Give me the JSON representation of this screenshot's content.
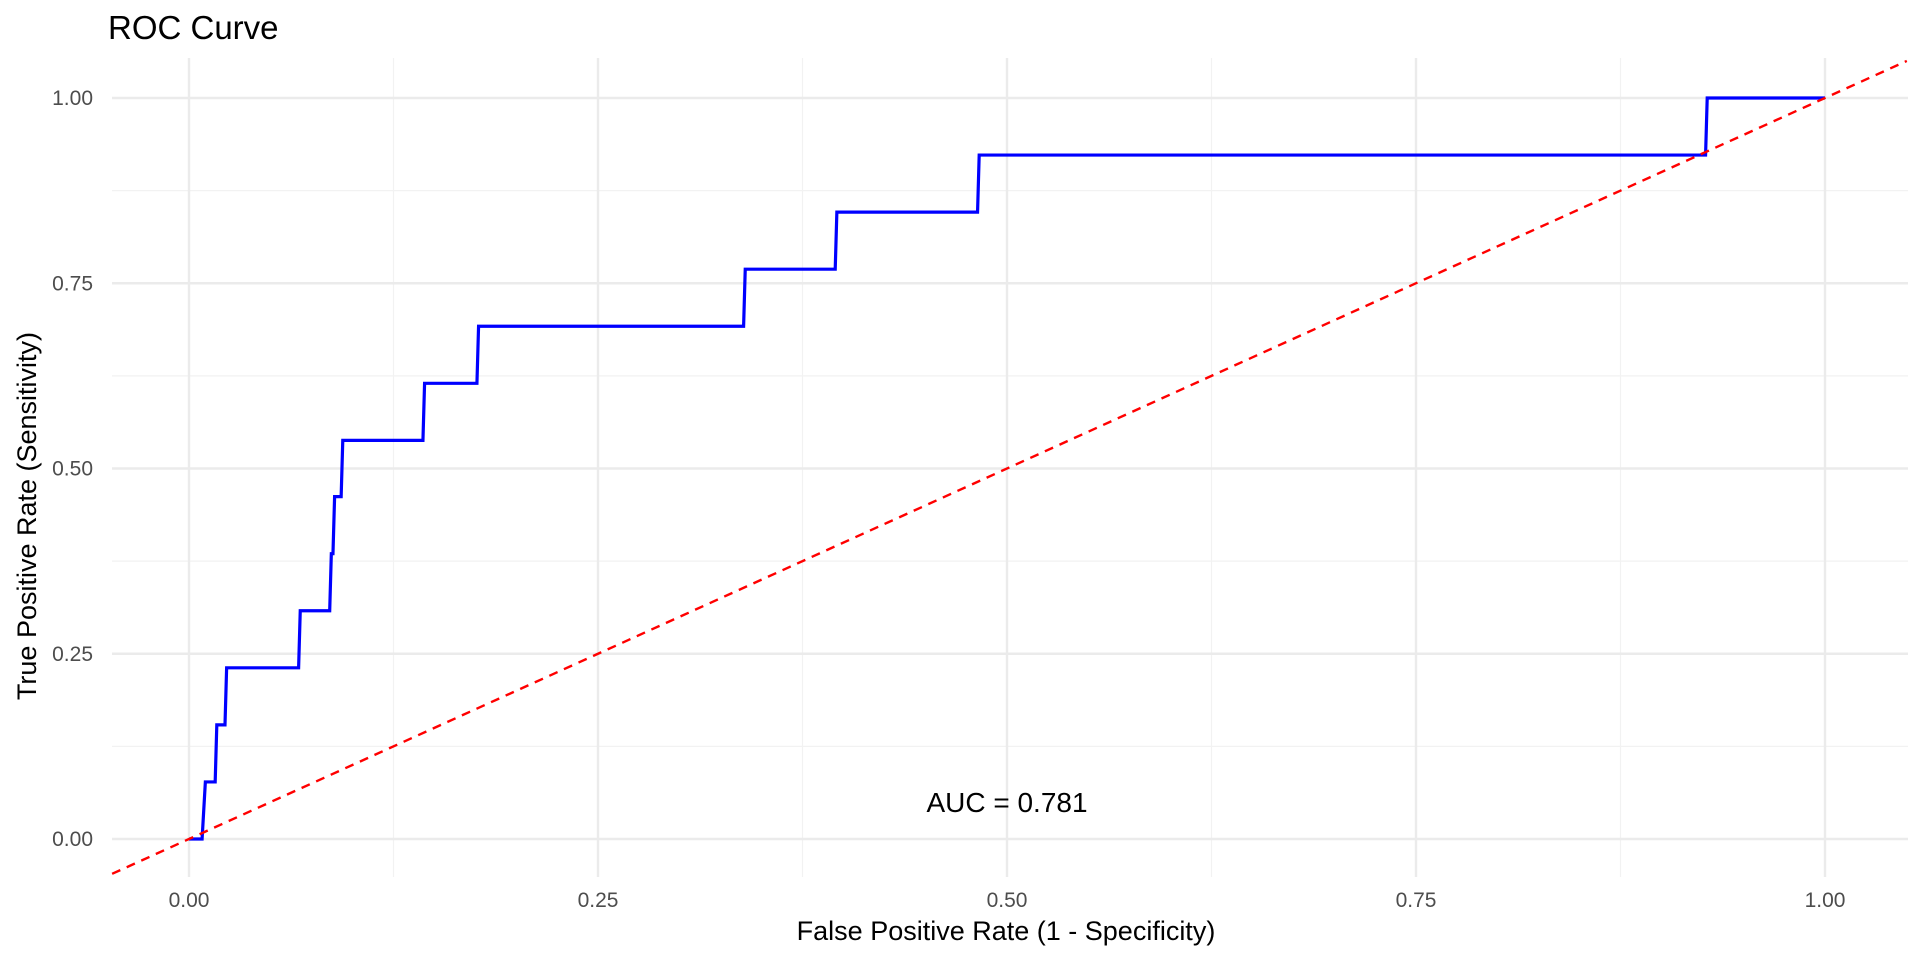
{
  "chart_data": {
    "type": "line",
    "title": "ROC Curve",
    "xlabel": "False Positive Rate (1 - Specificity)",
    "ylabel": "True Positive Rate (Sensitivity)",
    "xlim": [
      -0.047,
      1.05
    ],
    "ylim": [
      -0.05,
      1.05
    ],
    "x_ticks": [
      0,
      0.25,
      0.5,
      0.75,
      1
    ],
    "x_tick_labels": [
      "0.00",
      "0.25",
      "0.50",
      "0.75",
      "1.00"
    ],
    "y_ticks": [
      0,
      0.25,
      0.5,
      0.75,
      1
    ],
    "y_tick_labels": [
      "0.00",
      "0.25",
      "0.50",
      "0.75",
      "1.00"
    ],
    "grid": true,
    "series": [
      {
        "color": "#0000ff",
        "style": "solid",
        "x": [
          0,
          0.008,
          0.01,
          0.01,
          0.016,
          0.017,
          0.022,
          0.023,
          0.067,
          0.068,
          0.086,
          0.087,
          0.088,
          0.089,
          0.093,
          0.094,
          0.143,
          0.144,
          0.176,
          0.177,
          0.339,
          0.34,
          0.395,
          0.396,
          0.482,
          0.483,
          0.927,
          0.928,
          1.0
        ],
        "y": [
          0,
          0,
          0.077,
          0.077,
          0.077,
          0.154,
          0.154,
          0.231,
          0.231,
          0.308,
          0.308,
          0.385,
          0.385,
          0.462,
          0.462,
          0.538,
          0.538,
          0.615,
          0.615,
          0.692,
          0.692,
          0.769,
          0.769,
          0.846,
          0.846,
          0.923,
          0.923,
          1.0,
          1.0
        ]
      },
      {
        "color": "#ff0000",
        "style": "dashed",
        "x": [
          -0.047,
          1.05
        ],
        "y": [
          -0.047,
          1.05
        ]
      }
    ],
    "annotations": [
      {
        "text": "AUC = 0.781",
        "x": 0.5,
        "y": 0.05
      }
    ]
  }
}
